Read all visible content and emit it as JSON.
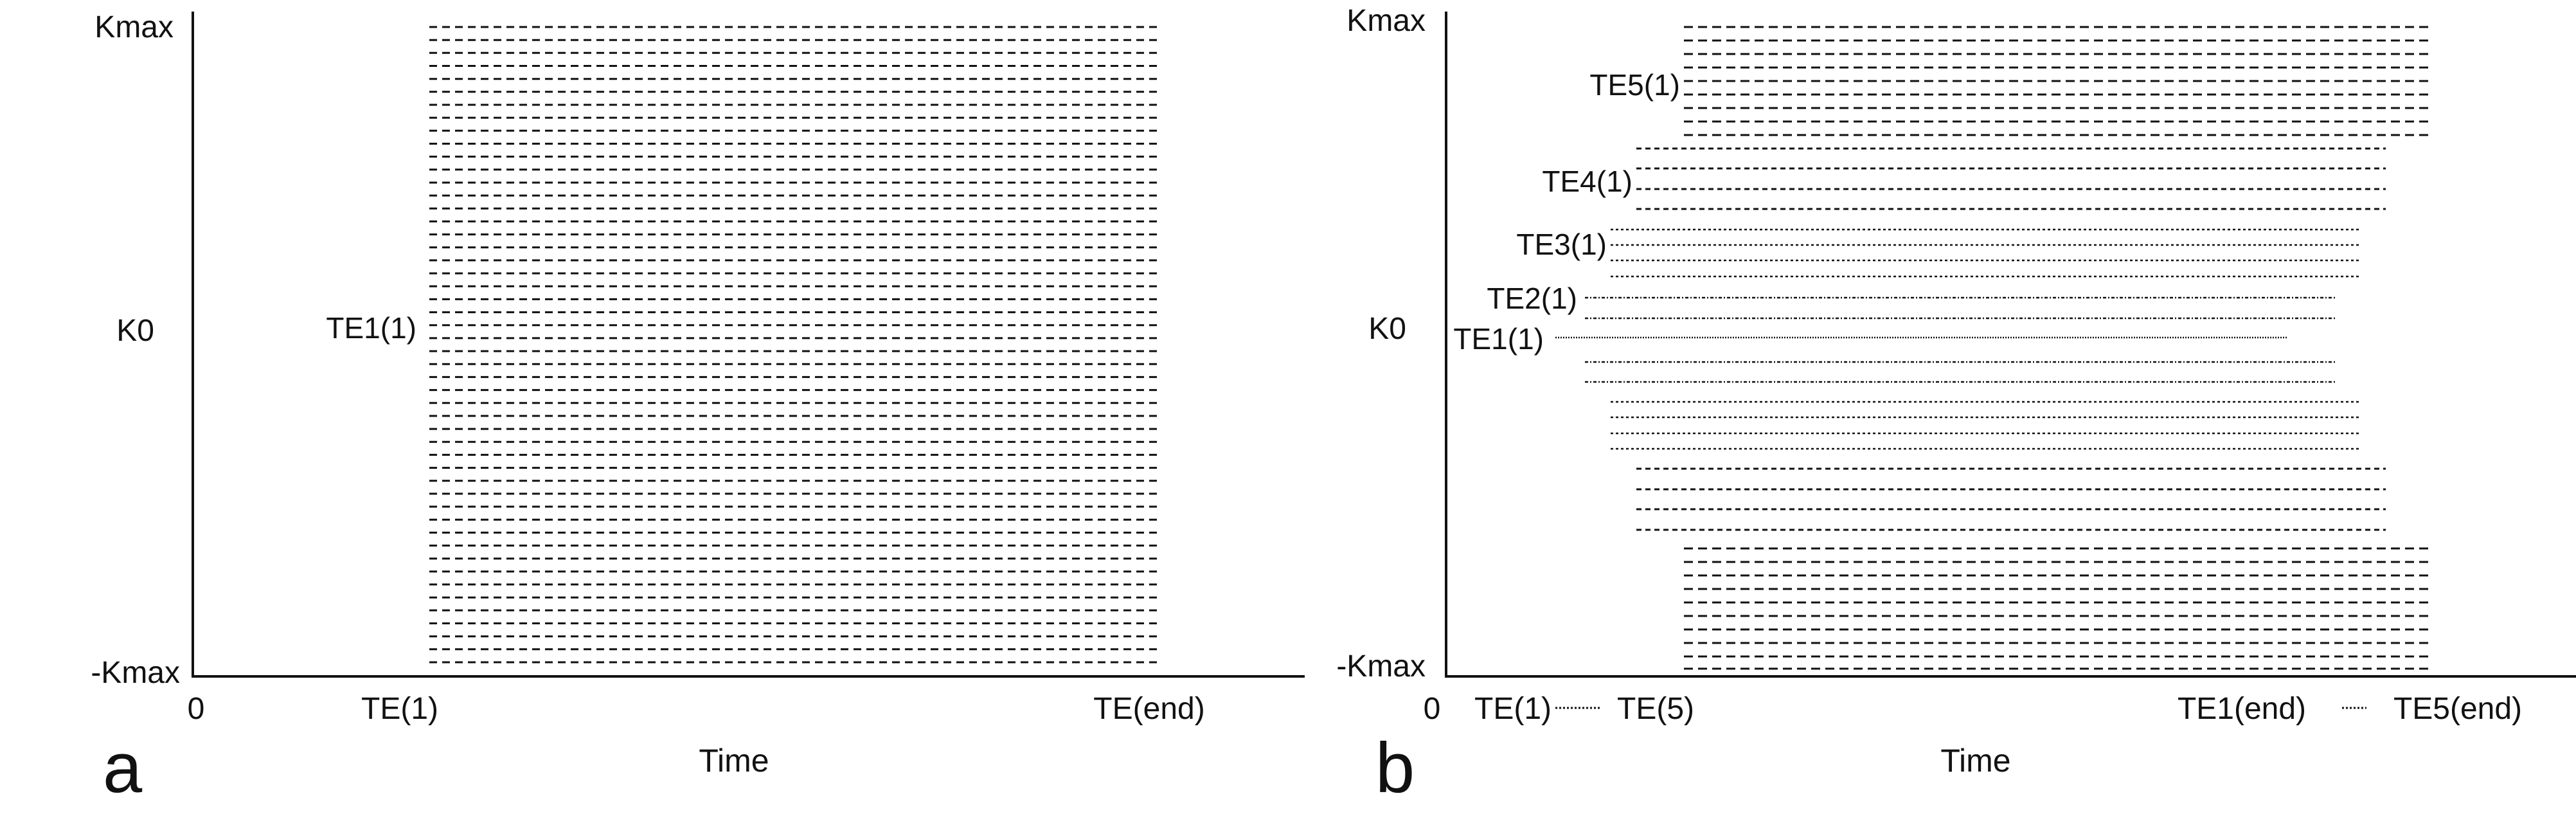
{
  "colors": {
    "line": "#111111",
    "background": "#ffffff"
  },
  "panels": [
    {
      "letter": "a",
      "xlabel": "Time",
      "y_ticks": {
        "top": "Kmax",
        "middle": "K0",
        "bottom": "-Kmax"
      },
      "x_ticks": {
        "origin": "0",
        "start": "TE(1)",
        "end": "TE(end)"
      },
      "readout_label": "TE1(1)"
    },
    {
      "letter": "b",
      "xlabel": "Time",
      "y_ticks": {
        "top": "Kmax",
        "middle": "K0",
        "bottom": "-Kmax"
      },
      "x_ticks": {
        "origin": "0",
        "start_first": "TE(1)",
        "start_last": "TE(5)",
        "end_first": "TE1(end)",
        "end_last": "TE5(end)"
      },
      "echo_labels": [
        "TE1(1)",
        "TE2(1)",
        "TE3(1)",
        "TE4(1)",
        "TE5(1)"
      ]
    }
  ]
}
